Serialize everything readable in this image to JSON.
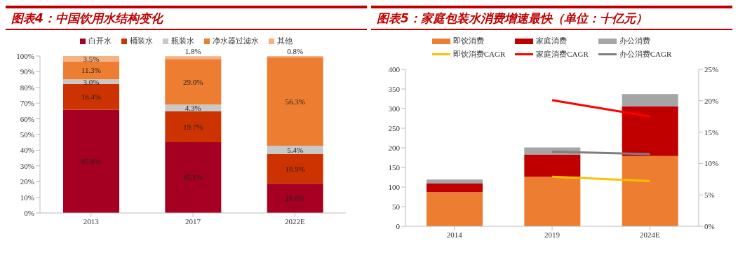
{
  "chart_data": [
    {
      "type": "bar",
      "title": "图表4：中国饮用水结构变化",
      "stacked": true,
      "legend": "top",
      "grid": false,
      "categories": [
        "2013",
        "2017",
        "2022E"
      ],
      "ylim": [
        0,
        100
      ],
      "yticks": [
        {
          "value": 0,
          "label": "0%"
        },
        {
          "value": 10,
          "label": "10%"
        },
        {
          "value": 20,
          "label": "20%"
        },
        {
          "value": 30,
          "label": "30%"
        },
        {
          "value": 40,
          "label": "40%"
        },
        {
          "value": 50,
          "label": "50%"
        },
        {
          "value": 60,
          "label": "60%"
        },
        {
          "value": 70,
          "label": "70%"
        },
        {
          "value": 80,
          "label": "80%"
        },
        {
          "value": 90,
          "label": "90%"
        },
        {
          "value": 100,
          "label": "100%"
        }
      ],
      "series": [
        {
          "name": "白开水",
          "color": "#a50021",
          "values": [
            65.8,
            45.1,
            18.6
          ],
          "value_labels": [
            "65.8%",
            "45.1%",
            "18.6%"
          ]
        },
        {
          "name": "桶装水",
          "color": "#cc3300",
          "values": [
            16.4,
            19.7,
            18.9
          ],
          "value_labels": [
            "16.4%",
            "19.7%",
            "18.9%"
          ]
        },
        {
          "name": "瓶装水",
          "color": "#c8c8c8",
          "values": [
            3.0,
            4.3,
            5.4
          ],
          "value_labels": [
            "3.0%",
            "4.3%",
            "5.4%"
          ]
        },
        {
          "name": "净水器过滤水",
          "color": "#ed7d31",
          "values": [
            11.3,
            29.0,
            56.3
          ],
          "value_labels": [
            "11.3%",
            "29.0%",
            "56.3%"
          ]
        },
        {
          "name": "其他",
          "color": "#f4b183",
          "values": [
            3.5,
            1.8,
            0.8
          ],
          "value_labels": [
            "3.5%",
            "1.8%",
            "0.8%"
          ]
        }
      ]
    },
    {
      "type": "bar",
      "title": "图表5：家庭包装水消费增速最快（单位：十亿元）",
      "stacked": true,
      "legend": "top",
      "grid": false,
      "marker": "none",
      "categories": [
        "2014",
        "2019",
        "2024E"
      ],
      "ylim": [
        0,
        400
      ],
      "yticks": [
        0,
        50,
        100,
        150,
        200,
        250,
        300,
        350,
        400
      ],
      "y2lim": [
        0,
        25
      ],
      "y2ticks": [
        {
          "value": 0,
          "label": "0%"
        },
        {
          "value": 5,
          "label": "5%"
        },
        {
          "value": 10,
          "label": "10%"
        },
        {
          "value": 15,
          "label": "15%"
        },
        {
          "value": 20,
          "label": "20%"
        },
        {
          "value": 25,
          "label": "25%"
        }
      ],
      "series": [
        {
          "name": "即饮消费",
          "color": "#ed7d31",
          "values": [
            87,
            126,
            179
          ]
        },
        {
          "name": "家庭消费",
          "color": "#c00000",
          "values": [
            22,
            57,
            127
          ]
        },
        {
          "name": "办公消费",
          "color": "#a5a5a5",
          "values": [
            10,
            18,
            31
          ]
        },
        {
          "name": "即饮消费CAGR",
          "type": "line",
          "axis": "y2",
          "color": "#ffc000",
          "values": [
            null,
            7.9,
            7.2
          ]
        },
        {
          "name": "家庭消费CAGR",
          "type": "line",
          "axis": "y2",
          "color": "#ff0000",
          "values": [
            null,
            20.1,
            17.5
          ]
        },
        {
          "name": "办公消费CAGR",
          "type": "line",
          "axis": "y2",
          "color": "#7f7f7f",
          "values": [
            null,
            11.9,
            11.5
          ]
        }
      ]
    }
  ]
}
